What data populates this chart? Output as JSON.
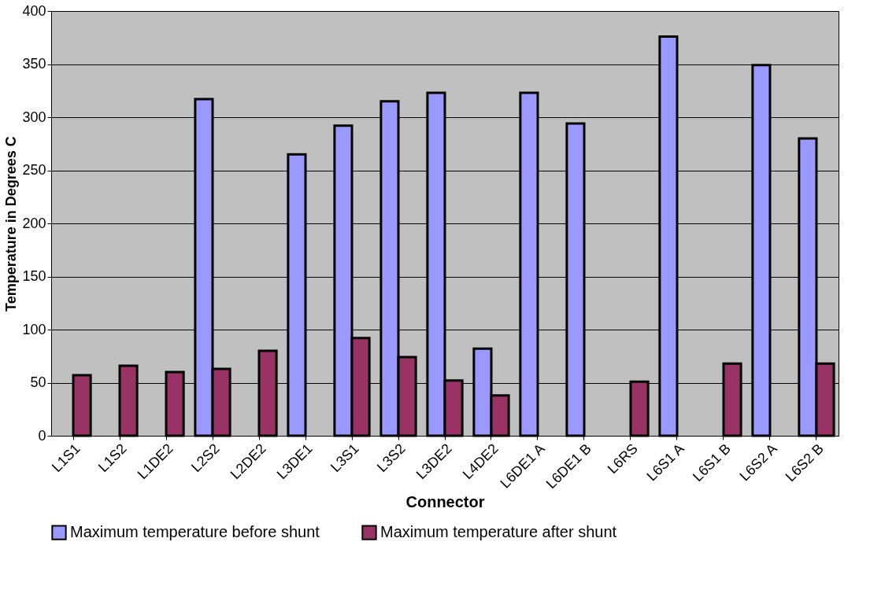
{
  "chart_data": {
    "type": "bar",
    "xlabel": "Connector",
    "ylabel": "Temperature in Degrees C",
    "categories": [
      "L1S1",
      "L1S2",
      "L1DE2",
      "L2S2",
      "L2DE2",
      "L3DE1",
      "L3S1",
      "L3S2",
      "L3DE2",
      "L4DE2",
      "L6DE1 A",
      "L6DE1 B",
      "L6RS",
      "L6S1 A",
      "L6S1 B",
      "L6S2 A",
      "L6S2 B"
    ],
    "series": [
      {
        "name": "Maximum temperature before shunt",
        "color": "#9999ff",
        "values": [
          null,
          null,
          null,
          317,
          null,
          265,
          292,
          315,
          323,
          82,
          323,
          294,
          null,
          376,
          null,
          349,
          280
        ]
      },
      {
        "name": "Maximum temperature after shunt",
        "color": "#993366",
        "values": [
          57,
          66,
          60,
          63,
          80,
          null,
          92,
          74,
          52,
          38,
          null,
          null,
          51,
          null,
          68,
          null,
          68
        ]
      }
    ],
    "ylim": [
      0,
      400
    ],
    "yticks": [
      0,
      50,
      100,
      150,
      200,
      250,
      300,
      350,
      400
    ],
    "grid": "y",
    "legend": "bottom"
  }
}
